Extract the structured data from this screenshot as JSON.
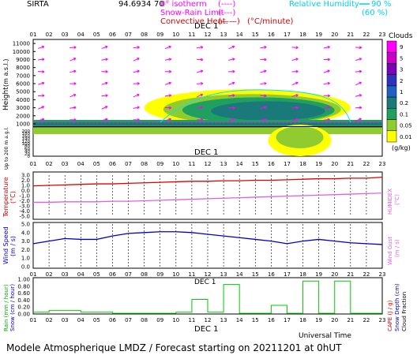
{
  "header": {
    "station": "SIRTA",
    "coords": "94.6934",
    "coords_suffix": "70",
    "legend": {
      "isotherm": "0° isotherm",
      "snow_rain": "Snow-Rain Limit",
      "convective": "Convective Heat.",
      "convective_unit": "(°C/minute)",
      "rh": "Relative Humidity",
      "rh_90": "90 %",
      "rh_60": "(60 %)"
    }
  },
  "hours": [
    "01",
    "02",
    "03",
    "04",
    "05",
    "06",
    "07",
    "08",
    "09",
    "10",
    "11",
    "12",
    "13",
    "14",
    "15",
    "16",
    "17",
    "18",
    "19",
    "20",
    "21",
    "22",
    "23"
  ],
  "day_label": "DEC  1",
  "footer": {
    "axis_title": "Universal Time",
    "title": "Modele Atmospherique LMDZ / Forecast starting on 20211201 at 0hUT"
  },
  "clouds_legend": {
    "title": "Clouds",
    "unit": "(g/kg)",
    "levels": [
      "9",
      "5",
      "3",
      "2",
      "1",
      "0.2",
      "0.1",
      "0.05",
      "0.01"
    ],
    "colors": [
      "#ff00ff",
      "#c800c8",
      "#7a00b8",
      "#3030b8",
      "#2060c0",
      "#1a7a7a",
      "#20a060",
      "#90cc30",
      "#ffff00"
    ]
  },
  "colors": {
    "arrows": "#ff00ff",
    "rh90": "#00e5ff",
    "temperature": "#e00000",
    "humidex": "#e060e0",
    "wind": "#0000cc",
    "rain": "#00cc00",
    "grid": "#000000"
  },
  "chart_data": [
    {
      "type": "heatmap",
      "name_label": "Height (m a.s.l.)",
      "ylabel": "Height",
      "ylabel_unit": "(m a.s.l.)",
      "ylabel_low": "Up to 200 m a.g.l.",
      "upper_ticks": [
        "11000",
        "10000",
        "9000",
        "8000",
        "7000",
        "6000",
        "5000",
        "4000",
        "3000",
        "2000",
        "1000"
      ],
      "lower_ticks": [
        "200",
        "180",
        "160",
        "140",
        "120",
        "100",
        "80",
        "60",
        "40",
        "20",
        "0"
      ],
      "cloud_regions": [
        {
          "level": "0.01",
          "x": [
            8.5,
            20.0
          ],
          "y": [
            600,
            5200
          ]
        },
        {
          "level": "0.1",
          "x": [
            10.0,
            19.5
          ],
          "y": [
            900,
            4600
          ]
        },
        {
          "level": "0.2",
          "x": [
            12.0,
            19.0
          ],
          "y": [
            1200,
            4000
          ]
        }
      ]
    },
    {
      "type": "line",
      "ylabel": "Temperature",
      "ylabel_unit": "(°C)",
      "right_label": "HUMIDEX",
      "right_unit": "(°C)",
      "yticks": [
        "3.0",
        "2.0",
        "1.0",
        "0.0",
        "-1.0",
        "-2.0",
        "-3.0",
        "-4.0",
        "-5.0"
      ],
      "ylim": [
        -5,
        3
      ],
      "x": [
        1,
        2,
        3,
        4,
        5,
        6,
        7,
        8,
        9,
        10,
        11,
        12,
        13,
        14,
        15,
        16,
        17,
        18,
        19,
        20,
        21,
        22,
        23
      ],
      "series": [
        {
          "key": "temperature",
          "values": [
            0.9,
            1.0,
            1.1,
            1.2,
            1.3,
            1.3,
            1.4,
            1.5,
            1.6,
            1.7,
            1.8,
            1.8,
            1.9,
            1.9,
            2.0,
            2.0,
            2.1,
            2.2,
            2.3,
            2.3,
            2.4,
            2.4,
            2.6
          ]
        },
        {
          "key": "humidex",
          "values": [
            -2.3,
            -2.3,
            -2.2,
            -2.2,
            -2.2,
            -2.1,
            -2.1,
            -2.0,
            -1.9,
            -1.8,
            -1.7,
            -1.6,
            -1.5,
            -1.4,
            -1.3,
            -1.2,
            -1.1,
            -1.0,
            -0.9,
            -0.8,
            -0.7,
            -0.6,
            -0.5
          ]
        }
      ]
    },
    {
      "type": "line",
      "ylabel": "Wind Speed",
      "ylabel_unit": "(m / s)",
      "right_label": "Wind Gust",
      "right_unit": "(m / s)",
      "yticks": [
        "5.0",
        "4.0",
        "3.0",
        "2.0",
        "1.0",
        "0.0"
      ],
      "ylim": [
        0,
        5
      ],
      "x": [
        1,
        2,
        3,
        4,
        5,
        6,
        7,
        8,
        9,
        10,
        11,
        12,
        13,
        14,
        15,
        16,
        17,
        18,
        19,
        20,
        21,
        22,
        23
      ],
      "series": [
        {
          "key": "wind",
          "values": [
            2.7,
            3.0,
            3.3,
            3.2,
            3.2,
            3.6,
            3.9,
            4.0,
            4.1,
            4.1,
            4.0,
            3.8,
            3.6,
            3.4,
            3.2,
            3.0,
            2.7,
            3.0,
            3.2,
            3.0,
            2.8,
            2.7,
            2.6
          ]
        }
      ]
    },
    {
      "type": "bar",
      "ylabel": "Rain (mm / hour)",
      "ylabel2": "Snow (cm / hour)",
      "right_label": "CAPE (J / g)",
      "right_label2": "Snow Depth (cm)",
      "right_label3": "Cloud Fraction",
      "yticks": [
        "1.00",
        "0.80",
        "0.60",
        "0.40",
        "0.20",
        "0.00"
      ],
      "ylim": [
        0,
        1
      ],
      "x": [
        1,
        2,
        3,
        4,
        5,
        6,
        7,
        8,
        9,
        10,
        11,
        12,
        13,
        14,
        15,
        16,
        17,
        18,
        19,
        20,
        21,
        22,
        23
      ],
      "series": [
        {
          "key": "rain",
          "values": [
            0.05,
            0.1,
            0.1,
            0.05,
            0.05,
            0.02,
            0.02,
            0.02,
            0.02,
            0.05,
            0.42,
            0.05,
            0.85,
            0.02,
            0.02,
            0.25,
            0.02,
            0.95,
            0.02,
            0.95,
            0.02,
            0.02,
            0.02
          ]
        }
      ]
    }
  ]
}
